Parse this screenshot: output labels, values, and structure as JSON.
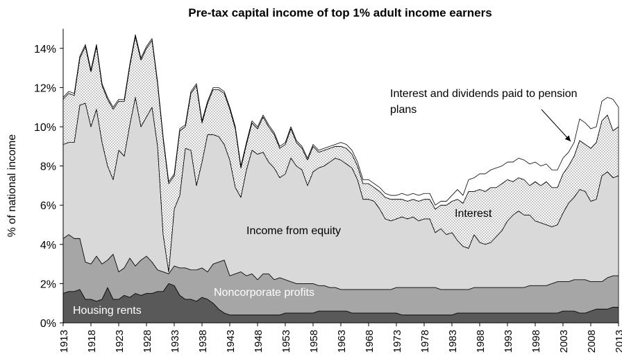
{
  "chart_data": {
    "type": "stacked_area",
    "title": "Pre-tax capital income of top 1% adult income earners",
    "y_label": "% of national income",
    "x": [
      1913,
      1914,
      1915,
      1916,
      1917,
      1918,
      1919,
      1920,
      1921,
      1922,
      1923,
      1924,
      1925,
      1926,
      1927,
      1928,
      1929,
      1930,
      1931,
      1932,
      1933,
      1934,
      1935,
      1936,
      1937,
      1938,
      1939,
      1940,
      1941,
      1942,
      1943,
      1944,
      1945,
      1946,
      1947,
      1948,
      1949,
      1950,
      1951,
      1952,
      1953,
      1954,
      1955,
      1956,
      1957,
      1958,
      1959,
      1960,
      1961,
      1962,
      1963,
      1964,
      1965,
      1966,
      1967,
      1968,
      1969,
      1970,
      1971,
      1972,
      1973,
      1974,
      1975,
      1976,
      1977,
      1978,
      1979,
      1980,
      1981,
      1982,
      1983,
      1984,
      1985,
      1986,
      1987,
      1988,
      1989,
      1990,
      1991,
      1992,
      1993,
      1994,
      1995,
      1996,
      1997,
      1998,
      1999,
      2000,
      2001,
      2002,
      2003,
      2004,
      2005,
      2006,
      2007,
      2008,
      2009,
      2010,
      2011,
      2012,
      2013
    ],
    "xlim": [
      1913,
      2013
    ],
    "xticks": [
      1913,
      1918,
      1923,
      1928,
      1933,
      1938,
      1943,
      1948,
      1953,
      1958,
      1963,
      1968,
      1973,
      1978,
      1983,
      1988,
      1993,
      1998,
      2003,
      2008,
      2013
    ],
    "ylim": [
      0,
      15
    ],
    "yticks": [
      {
        "value": 0,
        "label": "0%"
      },
      {
        "value": 2,
        "label": "2%"
      },
      {
        "value": 4,
        "label": "4%"
      },
      {
        "value": 6,
        "label": "6%"
      },
      {
        "value": 8,
        "label": "8%"
      },
      {
        "value": 10,
        "label": "10%"
      },
      {
        "value": 12,
        "label": "12%"
      },
      {
        "value": 14,
        "label": "14%"
      }
    ],
    "grid": false,
    "series": [
      {
        "name": "Housing rents",
        "color": "#595959",
        "values": [
          1.5,
          1.6,
          1.6,
          1.7,
          1.2,
          1.2,
          1.1,
          1.2,
          1.8,
          1.2,
          1.2,
          1.4,
          1.3,
          1.5,
          1.4,
          1.5,
          1.5,
          1.6,
          1.6,
          2.0,
          1.9,
          1.4,
          1.2,
          1.2,
          1.1,
          1.3,
          1.2,
          1.0,
          0.7,
          0.5,
          0.4,
          0.4,
          0.4,
          0.4,
          0.4,
          0.4,
          0.4,
          0.4,
          0.4,
          0.4,
          0.5,
          0.5,
          0.5,
          0.5,
          0.5,
          0.5,
          0.6,
          0.6,
          0.6,
          0.6,
          0.6,
          0.6,
          0.5,
          0.5,
          0.5,
          0.5,
          0.5,
          0.5,
          0.5,
          0.5,
          0.5,
          0.4,
          0.4,
          0.4,
          0.4,
          0.4,
          0.4,
          0.4,
          0.4,
          0.4,
          0.4,
          0.5,
          0.5,
          0.5,
          0.5,
          0.5,
          0.5,
          0.5,
          0.5,
          0.5,
          0.5,
          0.5,
          0.5,
          0.5,
          0.5,
          0.5,
          0.5,
          0.5,
          0.5,
          0.5,
          0.6,
          0.6,
          0.6,
          0.5,
          0.5,
          0.6,
          0.7,
          0.7,
          0.7,
          0.8,
          0.8
        ]
      },
      {
        "name": "Noncorporate profits",
        "color": "#a6a6a6",
        "values": [
          2.8,
          2.9,
          2.7,
          2.6,
          1.9,
          1.8,
          2.3,
          1.8,
          1.4,
          2.3,
          1.4,
          1.4,
          2.0,
          1.4,
          1.8,
          1.9,
          1.6,
          1.1,
          1.0,
          0.5,
          1.0,
          1.4,
          1.6,
          1.5,
          1.6,
          1.5,
          1.4,
          2.0,
          2.4,
          2.7,
          2.0,
          2.1,
          2.2,
          2.0,
          2.1,
          1.8,
          2.1,
          2.1,
          1.8,
          1.9,
          1.7,
          1.6,
          1.5,
          1.5,
          1.5,
          1.5,
          1.3,
          1.3,
          1.2,
          1.2,
          1.1,
          1.1,
          1.2,
          1.2,
          1.2,
          1.2,
          1.2,
          1.2,
          1.2,
          1.2,
          1.3,
          1.4,
          1.4,
          1.4,
          1.4,
          1.4,
          1.4,
          1.4,
          1.3,
          1.3,
          1.3,
          1.2,
          1.2,
          1.2,
          1.3,
          1.3,
          1.3,
          1.3,
          1.3,
          1.3,
          1.3,
          1.3,
          1.3,
          1.3,
          1.4,
          1.4,
          1.4,
          1.4,
          1.5,
          1.6,
          1.5,
          1.5,
          1.6,
          1.7,
          1.7,
          1.5,
          1.4,
          1.4,
          1.6,
          1.6,
          1.6
        ]
      },
      {
        "name": "Income from equity",
        "color": "#d9d9d9",
        "values": [
          4.8,
          4.7,
          4.9,
          6.8,
          8.1,
          7.0,
          7.5,
          6.2,
          4.8,
          3.8,
          6.2,
          5.7,
          6.8,
          8.6,
          6.8,
          7.1,
          7.9,
          6.3,
          1.9,
          0.1,
          2.9,
          3.7,
          6.1,
          6.1,
          4.3,
          5.4,
          7.0,
          6.6,
          6.4,
          5.9,
          5.9,
          4.4,
          3.8,
          5.4,
          6.3,
          6.4,
          6.2,
          5.7,
          5.7,
          5.1,
          5.4,
          6.3,
          6.0,
          5.8,
          5.0,
          5.7,
          6.0,
          6.1,
          6.4,
          6.6,
          6.6,
          6.4,
          6.2,
          5.6,
          4.6,
          4.6,
          4.5,
          4.1,
          3.6,
          3.5,
          3.5,
          3.6,
          3.5,
          3.6,
          3.4,
          3.5,
          3.5,
          2.8,
          3.1,
          2.8,
          2.9,
          2.5,
          2.2,
          2.1,
          2.7,
          2.3,
          2.2,
          2.3,
          2.6,
          2.9,
          3.4,
          3.7,
          3.9,
          3.7,
          3.6,
          3.3,
          3.2,
          3.1,
          2.9,
          2.9,
          3.5,
          4.0,
          4.2,
          4.6,
          4.5,
          4.1,
          4.2,
          5.4,
          5.4,
          5.0,
          5.1
        ]
      },
      {
        "name": "Interest",
        "color": "#ffffff",
        "pattern": "dots",
        "values": [
          2.3,
          2.5,
          2.4,
          2.4,
          2.9,
          2.8,
          3.2,
          2.9,
          3.4,
          3.6,
          2.5,
          2.8,
          3.0,
          3.1,
          3.4,
          3.5,
          3.4,
          3.2,
          4.9,
          4.5,
          1.7,
          3.3,
          1.1,
          2.9,
          5.1,
          2.0,
          1.6,
          2.3,
          2.4,
          2.6,
          2.6,
          3.0,
          1.5,
          1.3,
          1.4,
          1.3,
          1.8,
          1.8,
          1.7,
          1.5,
          1.5,
          1.5,
          1.2,
          1.1,
          1.3,
          1.3,
          0.8,
          0.8,
          0.7,
          0.6,
          0.7,
          0.8,
          0.7,
          0.7,
          0.8,
          0.8,
          0.7,
          0.9,
          1.1,
          1.1,
          1.0,
          0.9,
          0.9,
          0.9,
          1.0,
          1.0,
          1.0,
          1.2,
          1.2,
          1.5,
          1.6,
          2.1,
          2.2,
          2.9,
          2.2,
          2.7,
          2.7,
          2.8,
          2.5,
          2.4,
          2.1,
          1.7,
          1.7,
          1.8,
          1.5,
          2.0,
          1.9,
          2.2,
          2.0,
          1.9,
          2.0,
          1.9,
          2.1,
          2.5,
          2.4,
          2.7,
          2.9,
          2.8,
          2.9,
          2.4,
          2.5
        ]
      },
      {
        "name": "Interest and dividends paid to pension plans",
        "color": "#ffffff",
        "values": [
          0.1,
          0.1,
          0.1,
          0.1,
          0.1,
          0.1,
          0.1,
          0.1,
          0.1,
          0.1,
          0.1,
          0.1,
          0.1,
          0.1,
          0.1,
          0.1,
          0.1,
          0.1,
          0.1,
          0.1,
          0.1,
          0.1,
          0.1,
          0.1,
          0.1,
          0.1,
          0.1,
          0.1,
          0.1,
          0.1,
          0.1,
          0.1,
          0.1,
          0.1,
          0.1,
          0.1,
          0.1,
          0.1,
          0.1,
          0.1,
          0.1,
          0.1,
          0.1,
          0.1,
          0.1,
          0.1,
          0.1,
          0.1,
          0.1,
          0.1,
          0.2,
          0.2,
          0.2,
          0.2,
          0.2,
          0.2,
          0.2,
          0.2,
          0.2,
          0.2,
          0.2,
          0.3,
          0.3,
          0.3,
          0.3,
          0.3,
          0.3,
          0.2,
          0.2,
          0.2,
          0.3,
          0.5,
          0.4,
          0.6,
          0.7,
          0.8,
          0.9,
          0.9,
          1.0,
          0.9,
          0.9,
          1.0,
          1.0,
          1.0,
          1.1,
          1.0,
          1.0,
          0.9,
          0.9,
          0.9,
          0.8,
          0.7,
          0.7,
          1.1,
          1.1,
          1.0,
          0.8,
          1.0,
          0.9,
          1.6,
          1.0
        ]
      }
    ]
  }
}
